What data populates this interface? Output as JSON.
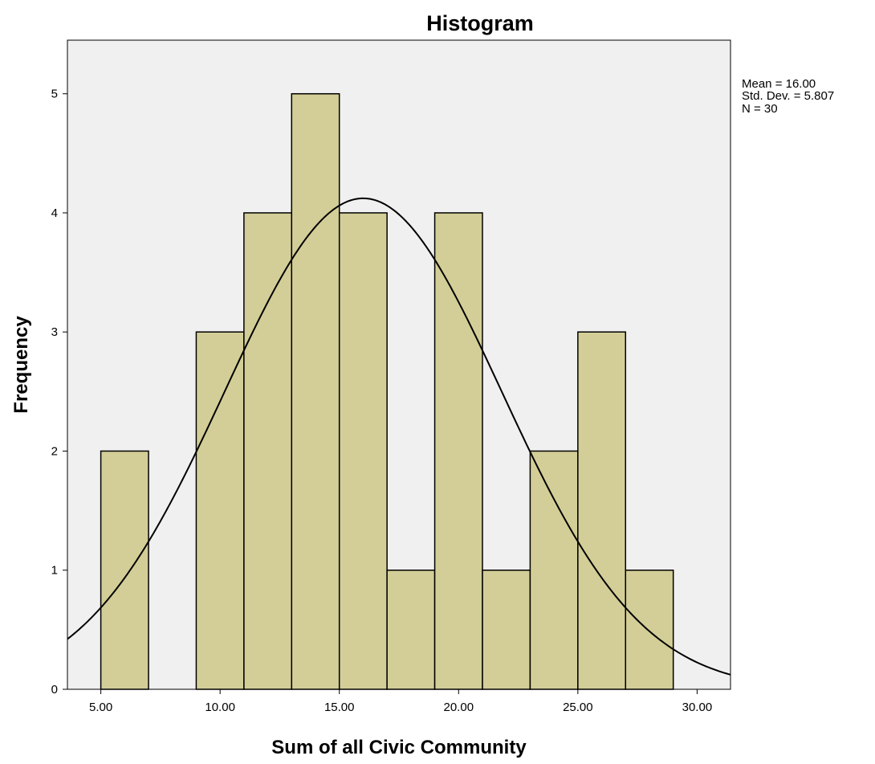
{
  "chart_data": {
    "type": "bar",
    "title": "Histogram",
    "xlabel": "Sum of all Civic Community",
    "ylabel": "Frequency",
    "bins": [
      {
        "start": 5,
        "end": 7,
        "count": 2
      },
      {
        "start": 7,
        "end": 9,
        "count": 0
      },
      {
        "start": 9,
        "end": 11,
        "count": 3
      },
      {
        "start": 11,
        "end": 13,
        "count": 4
      },
      {
        "start": 13,
        "end": 15,
        "count": 5
      },
      {
        "start": 15,
        "end": 17,
        "count": 4
      },
      {
        "start": 17,
        "end": 19,
        "count": 1
      },
      {
        "start": 19,
        "end": 21,
        "count": 4
      },
      {
        "start": 21,
        "end": 23,
        "count": 1
      },
      {
        "start": 23,
        "end": 25,
        "count": 2
      },
      {
        "start": 25,
        "end": 27,
        "count": 3
      },
      {
        "start": 27,
        "end": 29,
        "count": 1
      }
    ],
    "xlim": [
      3.6,
      31.4
    ],
    "ylim": [
      0,
      5.45
    ],
    "xticks": [
      5,
      10,
      15,
      20,
      25,
      30
    ],
    "xtick_labels": [
      "5.00",
      "10.00",
      "15.00",
      "20.00",
      "25.00",
      "30.00"
    ],
    "yticks": [
      0,
      1,
      2,
      3,
      4,
      5
    ],
    "ytick_labels": [
      "0",
      "1",
      "2",
      "3",
      "4",
      "5"
    ],
    "normal_curve": {
      "mean": 16.0,
      "std_dev": 5.807,
      "n": 30,
      "bin_width": 2
    },
    "stats_lines": [
      "Mean = 16.00",
      "Std. Dev. = 5.807",
      "N = 30"
    ],
    "grid": false,
    "colors": {
      "plot_background": "#f0f0f0",
      "bar_fill": "#d3ce97",
      "bar_stroke": "#000000",
      "curve": "#000000"
    }
  }
}
